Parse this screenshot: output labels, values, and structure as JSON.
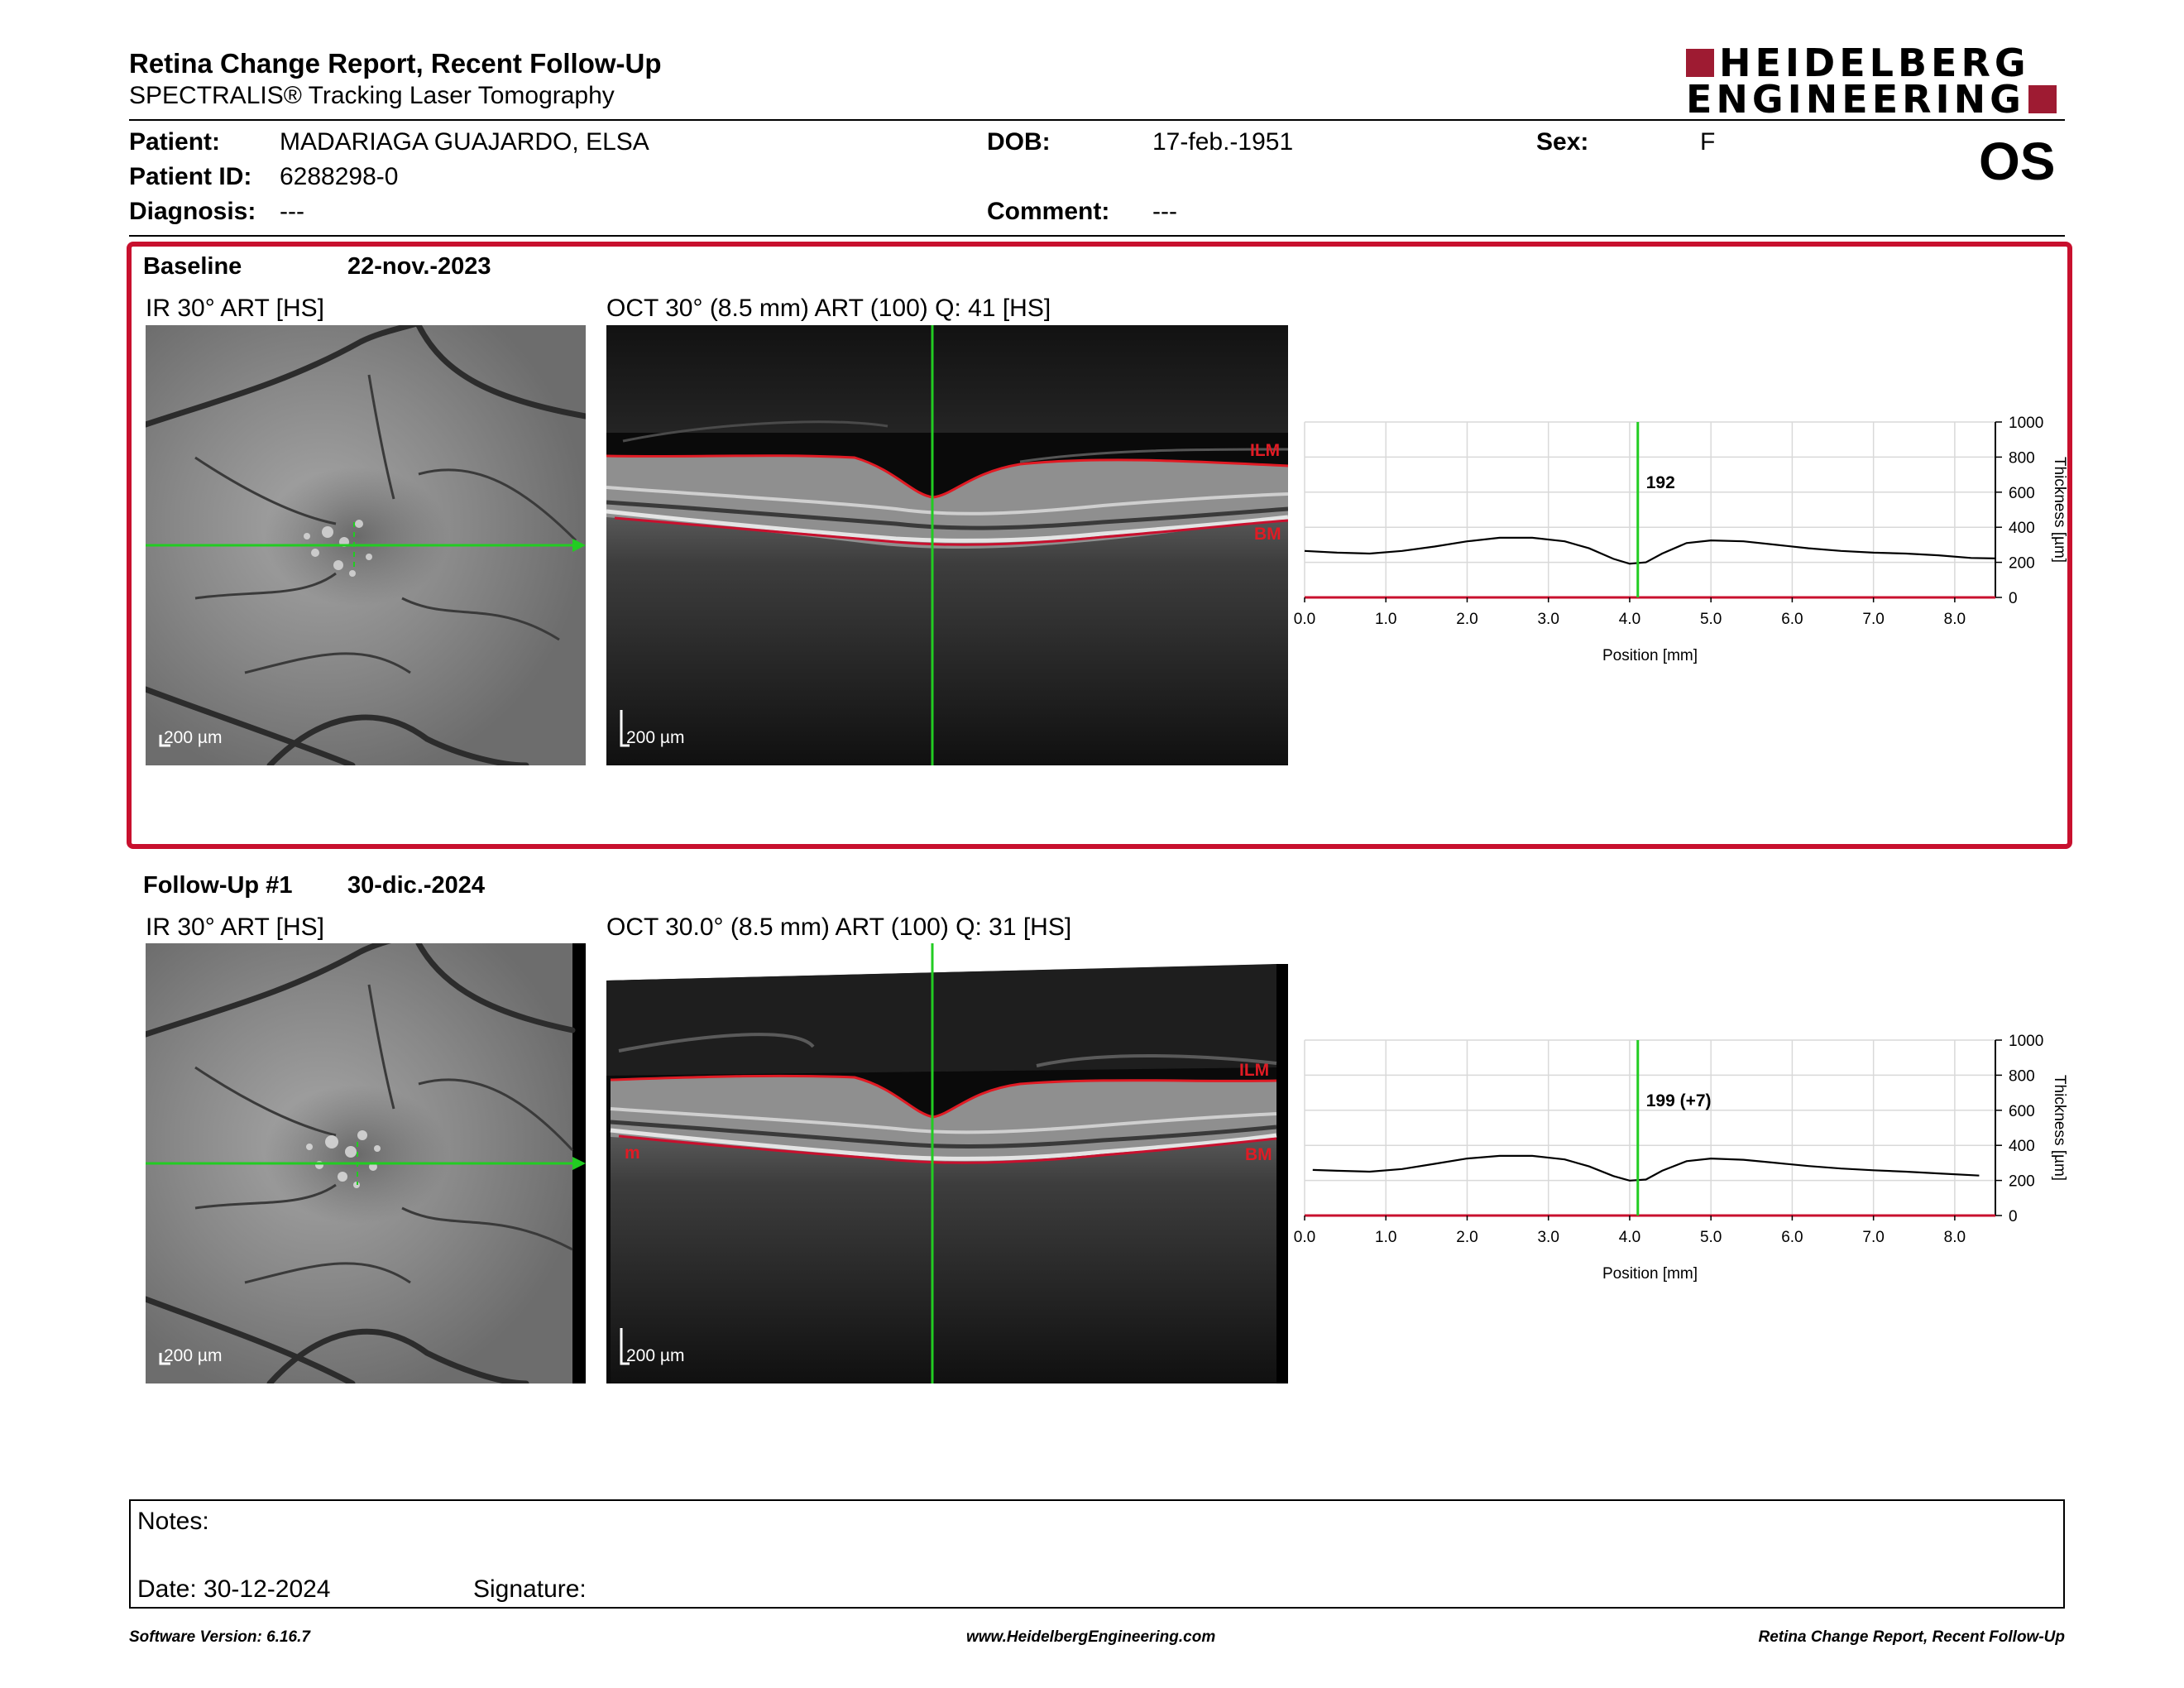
{
  "header": {
    "title": "Retina Change Report, Recent Follow-Up",
    "subtitle": "SPECTRALIS® Tracking Laser Tomography",
    "logo_line1": "HEIDELBERG",
    "logo_line2": "ENGINEERING",
    "eye": "OS"
  },
  "patient": {
    "patient_label": "Patient:",
    "patient_value": "MADARIAGA GUAJARDO, ELSA",
    "id_label": "Patient ID:",
    "id_value": "6288298-0",
    "diagnosis_label": "Diagnosis:",
    "diagnosis_value": "---",
    "dob_label": "DOB:",
    "dob_value": "17-feb.-1951",
    "comment_label": "Comment:",
    "comment_value": "---",
    "sex_label": "Sex:",
    "sex_value": "F"
  },
  "baseline": {
    "title": "Baseline",
    "date": "22-nov.-2023",
    "ir_caption": "IR 30° ART [HS]",
    "oct_caption": "OCT 30° (8.5 mm) ART (100) Q: 41 [HS]",
    "scale": "200 µm",
    "ilm": "ILM",
    "bm": "BM"
  },
  "followup": {
    "title": "Follow-Up #1",
    "date": "30-dic.-2024",
    "ir_caption": "IR 30° ART [HS]",
    "oct_caption": "OCT 30.0° (8.5 mm) ART (100) Q: 31 [HS]",
    "scale": "200 µm",
    "ilm": "ILM",
    "bm": "BM",
    "bm_left": "m"
  },
  "chart_data": [
    {
      "type": "line",
      "xlabel": "Position [mm]",
      "ylabel": "Thickness [µm]",
      "xlim": [
        0,
        8.5
      ],
      "ylim": [
        0,
        1000
      ],
      "x_ticks": [
        "0.0",
        "1.0",
        "2.0",
        "3.0",
        "4.0",
        "5.0",
        "6.0",
        "7.0",
        "8.0"
      ],
      "y_ticks": [
        "0",
        "200",
        "400",
        "600",
        "800",
        "1000"
      ],
      "cursor_x": 4.1,
      "cursor_label": "192",
      "x": [
        0,
        0.4,
        0.8,
        1.2,
        1.6,
        2.0,
        2.4,
        2.8,
        3.2,
        3.5,
        3.8,
        4.0,
        4.2,
        4.4,
        4.7,
        5.0,
        5.4,
        5.8,
        6.2,
        6.6,
        7.0,
        7.4,
        7.8,
        8.2,
        8.5
      ],
      "values": [
        265,
        255,
        250,
        265,
        290,
        320,
        340,
        340,
        320,
        280,
        220,
        192,
        200,
        250,
        310,
        325,
        320,
        300,
        280,
        265,
        255,
        250,
        240,
        225,
        222
      ],
      "grid": true
    },
    {
      "type": "line",
      "xlabel": "Position [mm]",
      "ylabel": "Thickness [µm]",
      "xlim": [
        0,
        8.5
      ],
      "ylim": [
        0,
        1000
      ],
      "x_ticks": [
        "0.0",
        "1.0",
        "2.0",
        "3.0",
        "4.0",
        "5.0",
        "6.0",
        "7.0",
        "8.0"
      ],
      "y_ticks": [
        "0",
        "200",
        "400",
        "600",
        "800",
        "1000"
      ],
      "cursor_x": 4.1,
      "cursor_label": "199 (+7)",
      "x": [
        0.1,
        0.4,
        0.8,
        1.2,
        1.6,
        2.0,
        2.4,
        2.8,
        3.2,
        3.5,
        3.8,
        4.0,
        4.2,
        4.4,
        4.7,
        5.0,
        5.4,
        5.8,
        6.2,
        6.6,
        7.0,
        7.4,
        7.8,
        8.3
      ],
      "values": [
        260,
        255,
        250,
        265,
        295,
        325,
        340,
        340,
        320,
        280,
        225,
        199,
        205,
        255,
        310,
        325,
        318,
        300,
        282,
        268,
        258,
        250,
        240,
        228
      ],
      "grid": true
    }
  ],
  "notes": {
    "notes_label": "Notes:",
    "date_label": "Date: 30-12-2024",
    "signature_label": "Signature:"
  },
  "footer": {
    "left": "Software Version: 6.16.7",
    "center": "www.HeidelbergEngineering.com",
    "right": "Retina Change Report, Recent Follow-Up"
  },
  "colors": {
    "accent": "#c8102e",
    "logo": "#9e1b32",
    "scan_line": "#22cc22"
  }
}
